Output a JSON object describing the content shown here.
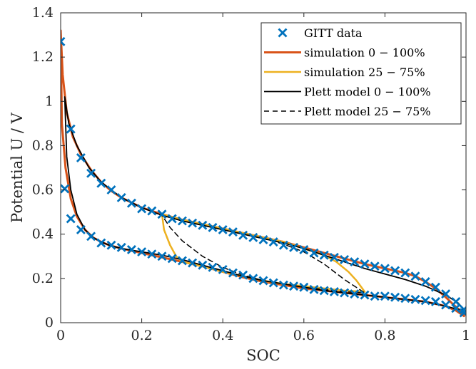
{
  "chart_data": {
    "type": "line",
    "title": "",
    "xlabel": "SOC",
    "ylabel": "Potential U / V",
    "xlim": [
      0,
      1
    ],
    "ylim": [
      0,
      1.4
    ],
    "xticks": [
      "0",
      "0.2",
      "0.4",
      "0.6",
      "0.8",
      "1"
    ],
    "yticks": [
      "0",
      "0.2",
      "0.4",
      "0.6",
      "0.8",
      "1",
      "1.2",
      "1.4"
    ],
    "grid": false,
    "legend_position": "top-right",
    "series": [
      {
        "name": "GITT data",
        "kind": "scatter",
        "marker": "x",
        "color": "#0072BD",
        "points": [
          [
            0.0,
            1.27
          ],
          [
            0.025,
            0.875
          ],
          [
            0.05,
            0.745
          ],
          [
            0.075,
            0.675
          ],
          [
            0.1,
            0.63
          ],
          [
            0.125,
            0.6
          ],
          [
            0.15,
            0.565
          ],
          [
            0.175,
            0.54
          ],
          [
            0.2,
            0.515
          ],
          [
            0.225,
            0.505
          ],
          [
            0.25,
            0.49
          ],
          [
            0.275,
            0.47
          ],
          [
            0.3,
            0.46
          ],
          [
            0.325,
            0.45
          ],
          [
            0.35,
            0.44
          ],
          [
            0.375,
            0.43
          ],
          [
            0.4,
            0.42
          ],
          [
            0.425,
            0.41
          ],
          [
            0.45,
            0.395
          ],
          [
            0.475,
            0.385
          ],
          [
            0.5,
            0.375
          ],
          [
            0.525,
            0.365
          ],
          [
            0.55,
            0.35
          ],
          [
            0.575,
            0.34
          ],
          [
            0.6,
            0.33
          ],
          [
            0.625,
            0.315
          ],
          [
            0.65,
            0.305
          ],
          [
            0.675,
            0.295
          ],
          [
            0.7,
            0.285
          ],
          [
            0.725,
            0.275
          ],
          [
            0.75,
            0.265
          ],
          [
            0.775,
            0.255
          ],
          [
            0.8,
            0.245
          ],
          [
            0.825,
            0.235
          ],
          [
            0.85,
            0.225
          ],
          [
            0.875,
            0.21
          ],
          [
            0.9,
            0.185
          ],
          [
            0.925,
            0.16
          ],
          [
            0.95,
            0.13
          ],
          [
            0.975,
            0.095
          ],
          [
            0.995,
            0.06
          ],
          [
            0.995,
            0.045
          ],
          [
            0.975,
            0.065
          ],
          [
            0.95,
            0.08
          ],
          [
            0.925,
            0.095
          ],
          [
            0.9,
            0.1
          ],
          [
            0.875,
            0.105
          ],
          [
            0.85,
            0.11
          ],
          [
            0.825,
            0.115
          ],
          [
            0.8,
            0.12
          ],
          [
            0.775,
            0.12
          ],
          [
            0.75,
            0.125
          ],
          [
            0.725,
            0.13
          ],
          [
            0.7,
            0.135
          ],
          [
            0.675,
            0.14
          ],
          [
            0.65,
            0.145
          ],
          [
            0.625,
            0.15
          ],
          [
            0.6,
            0.16
          ],
          [
            0.575,
            0.165
          ],
          [
            0.55,
            0.17
          ],
          [
            0.525,
            0.18
          ],
          [
            0.5,
            0.19
          ],
          [
            0.475,
            0.2
          ],
          [
            0.45,
            0.215
          ],
          [
            0.425,
            0.225
          ],
          [
            0.4,
            0.24
          ],
          [
            0.375,
            0.25
          ],
          [
            0.35,
            0.26
          ],
          [
            0.325,
            0.27
          ],
          [
            0.3,
            0.28
          ],
          [
            0.275,
            0.29
          ],
          [
            0.25,
            0.3
          ],
          [
            0.225,
            0.31
          ],
          [
            0.2,
            0.32
          ],
          [
            0.175,
            0.33
          ],
          [
            0.15,
            0.34
          ],
          [
            0.125,
            0.35
          ],
          [
            0.1,
            0.36
          ],
          [
            0.075,
            0.39
          ],
          [
            0.05,
            0.42
          ],
          [
            0.025,
            0.47
          ],
          [
            0.01,
            0.605
          ]
        ]
      },
      {
        "name": "simulation 0 − 100%",
        "kind": "line",
        "color": "#D95319",
        "width": 3,
        "dash": "",
        "points": [
          [
            0.0,
            1.32
          ],
          [
            0.005,
            1.12
          ],
          [
            0.015,
            0.95
          ],
          [
            0.03,
            0.84
          ],
          [
            0.05,
            0.76
          ],
          [
            0.075,
            0.69
          ],
          [
            0.1,
            0.635
          ],
          [
            0.125,
            0.595
          ],
          [
            0.15,
            0.565
          ],
          [
            0.2,
            0.52
          ],
          [
            0.25,
            0.49
          ],
          [
            0.3,
            0.465
          ],
          [
            0.35,
            0.445
          ],
          [
            0.4,
            0.425
          ],
          [
            0.45,
            0.405
          ],
          [
            0.5,
            0.385
          ],
          [
            0.55,
            0.365
          ],
          [
            0.6,
            0.34
          ],
          [
            0.65,
            0.315
          ],
          [
            0.7,
            0.29
          ],
          [
            0.75,
            0.265
          ],
          [
            0.8,
            0.245
          ],
          [
            0.85,
            0.225
          ],
          [
            0.875,
            0.21
          ],
          [
            0.9,
            0.185
          ],
          [
            0.925,
            0.155
          ],
          [
            0.95,
            0.115
          ],
          [
            0.97,
            0.08
          ],
          [
            0.985,
            0.055
          ],
          [
            0.995,
            0.035
          ],
          [
            0.995,
            0.03
          ],
          [
            0.975,
            0.055
          ],
          [
            0.95,
            0.075
          ],
          [
            0.9,
            0.095
          ],
          [
            0.85,
            0.105
          ],
          [
            0.8,
            0.115
          ],
          [
            0.75,
            0.125
          ],
          [
            0.7,
            0.135
          ],
          [
            0.65,
            0.145
          ],
          [
            0.6,
            0.155
          ],
          [
            0.55,
            0.17
          ],
          [
            0.5,
            0.185
          ],
          [
            0.45,
            0.205
          ],
          [
            0.4,
            0.23
          ],
          [
            0.35,
            0.255
          ],
          [
            0.3,
            0.275
          ],
          [
            0.25,
            0.295
          ],
          [
            0.2,
            0.315
          ],
          [
            0.15,
            0.335
          ],
          [
            0.12,
            0.35
          ],
          [
            0.1,
            0.365
          ],
          [
            0.08,
            0.385
          ],
          [
            0.06,
            0.42
          ],
          [
            0.04,
            0.48
          ],
          [
            0.025,
            0.56
          ],
          [
            0.012,
            0.7
          ],
          [
            0.003,
            0.9
          ],
          [
            0.0,
            1.32
          ]
        ]
      },
      {
        "name": "simulation 25 − 75%",
        "kind": "line",
        "color": "#EDB120",
        "width": 2.5,
        "dash": "",
        "points": [
          [
            0.25,
            0.49
          ],
          [
            0.3,
            0.465
          ],
          [
            0.35,
            0.445
          ],
          [
            0.4,
            0.425
          ],
          [
            0.45,
            0.405
          ],
          [
            0.5,
            0.385
          ],
          [
            0.55,
            0.365
          ],
          [
            0.6,
            0.335
          ],
          [
            0.65,
            0.305
          ],
          [
            0.68,
            0.275
          ],
          [
            0.71,
            0.23
          ],
          [
            0.73,
            0.19
          ],
          [
            0.75,
            0.14
          ],
          [
            0.7,
            0.145
          ],
          [
            0.65,
            0.155
          ],
          [
            0.6,
            0.165
          ],
          [
            0.55,
            0.175
          ],
          [
            0.5,
            0.19
          ],
          [
            0.45,
            0.21
          ],
          [
            0.4,
            0.23
          ],
          [
            0.35,
            0.255
          ],
          [
            0.3,
            0.275
          ],
          [
            0.285,
            0.3
          ],
          [
            0.27,
            0.35
          ],
          [
            0.255,
            0.42
          ],
          [
            0.25,
            0.49
          ]
        ]
      },
      {
        "name": "Plett model 0 − 100%",
        "kind": "line",
        "color": "#000000",
        "width": 1.8,
        "dash": "",
        "points": [
          [
            0.01,
            1.02
          ],
          [
            0.02,
            0.9
          ],
          [
            0.04,
            0.8
          ],
          [
            0.07,
            0.7
          ],
          [
            0.1,
            0.635
          ],
          [
            0.15,
            0.565
          ],
          [
            0.2,
            0.52
          ],
          [
            0.25,
            0.485
          ],
          [
            0.3,
            0.46
          ],
          [
            0.35,
            0.44
          ],
          [
            0.4,
            0.42
          ],
          [
            0.45,
            0.4
          ],
          [
            0.5,
            0.38
          ],
          [
            0.55,
            0.36
          ],
          [
            0.6,
            0.335
          ],
          [
            0.65,
            0.305
          ],
          [
            0.7,
            0.275
          ],
          [
            0.75,
            0.245
          ],
          [
            0.8,
            0.22
          ],
          [
            0.85,
            0.195
          ],
          [
            0.9,
            0.165
          ],
          [
            0.95,
            0.125
          ],
          [
            0.98,
            0.09
          ],
          [
            0.995,
            0.06
          ],
          [
            0.98,
            0.06
          ],
          [
            0.95,
            0.075
          ],
          [
            0.9,
            0.095
          ],
          [
            0.85,
            0.105
          ],
          [
            0.8,
            0.115
          ],
          [
            0.75,
            0.125
          ],
          [
            0.7,
            0.135
          ],
          [
            0.65,
            0.145
          ],
          [
            0.6,
            0.16
          ],
          [
            0.55,
            0.175
          ],
          [
            0.5,
            0.19
          ],
          [
            0.45,
            0.21
          ],
          [
            0.4,
            0.235
          ],
          [
            0.35,
            0.26
          ],
          [
            0.3,
            0.285
          ],
          [
            0.25,
            0.305
          ],
          [
            0.2,
            0.32
          ],
          [
            0.15,
            0.335
          ],
          [
            0.12,
            0.35
          ],
          [
            0.1,
            0.365
          ],
          [
            0.08,
            0.385
          ],
          [
            0.06,
            0.42
          ],
          [
            0.04,
            0.49
          ],
          [
            0.025,
            0.6
          ],
          [
            0.015,
            0.75
          ],
          [
            0.01,
            1.02
          ]
        ]
      },
      {
        "name": "Plett model 25 − 75%",
        "kind": "line",
        "color": "#000000",
        "width": 1.5,
        "dash": "7 5",
        "points": [
          [
            0.25,
            0.485
          ],
          [
            0.3,
            0.46
          ],
          [
            0.35,
            0.44
          ],
          [
            0.4,
            0.42
          ],
          [
            0.45,
            0.4
          ],
          [
            0.5,
            0.38
          ],
          [
            0.55,
            0.355
          ],
          [
            0.6,
            0.32
          ],
          [
            0.65,
            0.265
          ],
          [
            0.7,
            0.195
          ],
          [
            0.75,
            0.135
          ],
          [
            0.7,
            0.14
          ],
          [
            0.65,
            0.15
          ],
          [
            0.6,
            0.16
          ],
          [
            0.55,
            0.175
          ],
          [
            0.5,
            0.19
          ],
          [
            0.45,
            0.215
          ],
          [
            0.4,
            0.25
          ],
          [
            0.35,
            0.3
          ],
          [
            0.3,
            0.37
          ],
          [
            0.27,
            0.43
          ],
          [
            0.25,
            0.485
          ]
        ]
      }
    ]
  }
}
